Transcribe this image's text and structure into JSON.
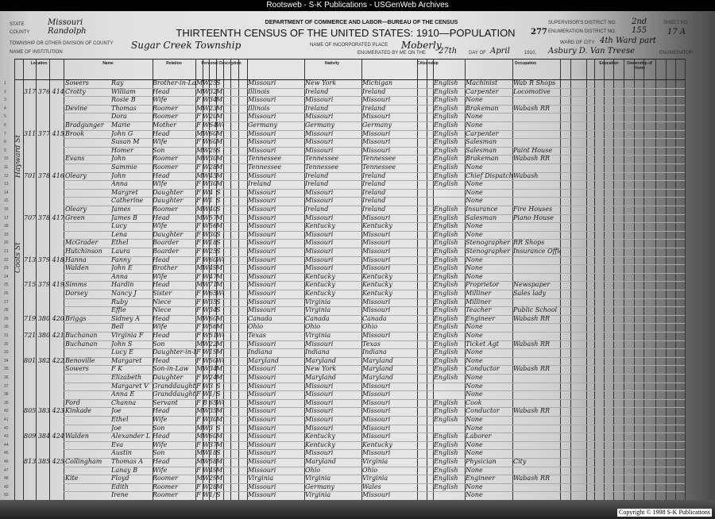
{
  "site_banner": "Rootsweb - S-K Publications - USGenWeb Archives",
  "copyright": "Copyright © 1998 S-K Publications",
  "header": {
    "department": "DEPARTMENT OF COMMERCE AND LABOR—BUREAU OF THE CENSUS",
    "title": "THIRTEENTH CENSUS OF THE UNITED STATES: 1910—POPULATION",
    "page_number": "277",
    "state_label": "State",
    "state": "Missouri",
    "county_label": "County",
    "county": "Randolph",
    "township_label": "Township or other division of county",
    "township": "Sugar Creek Township",
    "place_label": "Name of incorporated place",
    "place": "Moberly",
    "ward_label": "Ward of city",
    "ward": "4th Ward part",
    "supervisor_label": "Supervisor's District No.",
    "supervisor_district": "2nd",
    "enumeration_label": "Enumeration District No.",
    "enumeration_district": "155",
    "sheet_label": "Sheet No.",
    "sheet": "17 A",
    "institution_label": "Name of institution",
    "enumerated_label": "Enumerated by me on the",
    "day": "27th",
    "day_of_label": "day of",
    "month": "April",
    "year_label": "1910,",
    "enumerator": "Asbury D. Van Treese",
    "enumerator_label": "Enumerator"
  },
  "column_groups": [
    "Location",
    "Name",
    "Relation",
    "Personal Description",
    "Nativity",
    "Citizenship",
    "Occupation",
    "Education",
    "Ownership of Home"
  ],
  "streets": [
    "Hayward St",
    "Coots St"
  ],
  "row_fields": [
    "location",
    "surname",
    "given",
    "relation",
    "sex",
    "race",
    "age",
    "marital",
    "birthplace",
    "father_birthplace",
    "mother_birthplace",
    "language",
    "occupation",
    "industry"
  ],
  "rows": [
    [
      "",
      "Sowers",
      "Ray",
      "Brother-in-Law",
      "M",
      "W",
      "25",
      "S",
      "Missouri",
      "New York",
      "Michigan",
      "English",
      "Machinist",
      "Wab R Shops"
    ],
    [
      "317 376 414",
      "Crotty",
      "William",
      "Head",
      "M",
      "W",
      "32",
      "M1",
      "Illinois",
      "Ireland",
      "Ireland",
      "English",
      "Carpenter",
      "Locomotive"
    ],
    [
      "",
      "",
      "Rosie B",
      "Wife",
      "F",
      "W",
      "34",
      "M1",
      "Missouri",
      "Missouri",
      "Missouri",
      "English",
      "None",
      ""
    ],
    [
      "",
      "Devine",
      "Thomas",
      "Roomer",
      "M",
      "W",
      "23",
      "M1",
      "Illinois",
      "Ireland",
      "Ireland",
      "English",
      "Brakeman",
      "Wabash RR"
    ],
    [
      "",
      "",
      "Dora",
      "Roomer",
      "F",
      "W",
      "20",
      "M1",
      "Missouri",
      "Missouri",
      "Missouri",
      "English",
      "None",
      ""
    ],
    [
      "",
      "Bradgunger",
      "Marie",
      "Mother",
      "F",
      "W",
      "64",
      "Wd",
      "Germany",
      "Germany",
      "Germany",
      "English",
      "None",
      ""
    ],
    [
      "311 377 415",
      "Brook",
      "John G",
      "Head",
      "M",
      "W",
      "60",
      "M1",
      "Missouri",
      "Missouri",
      "Missouri",
      "English",
      "Carpenter",
      ""
    ],
    [
      "",
      "",
      "Susan M",
      "Wife",
      "F",
      "W",
      "60",
      "M1",
      "Missouri",
      "Missouri",
      "Missouri",
      "English",
      "Salesman",
      ""
    ],
    [
      "",
      "",
      "Homer",
      "Son",
      "M",
      "W",
      "29",
      "S",
      "Missouri",
      "Missouri",
      "Missouri",
      "English",
      "Salesman",
      "Paint House"
    ],
    [
      "",
      "Evans",
      "John",
      "Roomer",
      "M",
      "W",
      "30",
      "M1",
      "Tennessee",
      "Tennessee",
      "Tennessee",
      "English",
      "Brakeman",
      "Wabash RR"
    ],
    [
      "",
      "",
      "Sammie",
      "Roomer",
      "F",
      "W",
      "28",
      "M1",
      "Tennessee",
      "Tennessee",
      "Tennessee",
      "English",
      "None",
      ""
    ],
    [
      "701 378 416",
      "Oleary",
      "John",
      "Head",
      "M",
      "W",
      "45",
      "M1",
      "Missouri",
      "Ireland",
      "Ireland",
      "English",
      "Chief Dispatcher",
      "Wabash"
    ],
    [
      "",
      "",
      "Anna",
      "Wife",
      "F",
      "W",
      "30",
      "M1",
      "Ireland",
      "Ireland",
      "Ireland",
      "English",
      "None",
      ""
    ],
    [
      "",
      "",
      "Margret",
      "Daughter",
      "F",
      "W",
      "4",
      "S",
      "Missouri",
      "Missouri",
      "Ireland",
      "",
      "None",
      ""
    ],
    [
      "",
      "",
      "Catherine",
      "Daughter",
      "F",
      "W",
      "1",
      "S",
      "Missouri",
      "Missouri",
      "Ireland",
      "",
      "None",
      ""
    ],
    [
      "",
      "Oleary",
      "James",
      "Roomer",
      "M",
      "W",
      "40",
      "S",
      "Missouri",
      "Ireland",
      "Ireland",
      "English",
      "Insurance",
      "Fire Houses"
    ],
    [
      "707 378 417",
      "Green",
      "James B",
      "Head",
      "M",
      "W",
      "57",
      "M1",
      "Missouri",
      "Missouri",
      "Missouri",
      "English",
      "Salesman",
      "Piano House"
    ],
    [
      "",
      "",
      "Lucy",
      "Wife",
      "F",
      "W",
      "56",
      "M1",
      "Missouri",
      "Kentucky",
      "Kentucky",
      "English",
      "None",
      ""
    ],
    [
      "",
      "",
      "Lena",
      "Daughter",
      "F",
      "W",
      "30",
      "S",
      "Missouri",
      "Missouri",
      "Missouri",
      "English",
      "None",
      ""
    ],
    [
      "",
      "McGrader",
      "Ethel",
      "Boarder",
      "F",
      "W",
      "18",
      "S",
      "Missouri",
      "Missouri",
      "Missouri",
      "English",
      "Stenographer",
      "RR Shops"
    ],
    [
      "",
      "Hutchinson",
      "Laura",
      "Boarder",
      "F",
      "W",
      "25",
      "S",
      "Missouri",
      "Missouri",
      "Missouri",
      "English",
      "Stenographer",
      "Insurance Office"
    ],
    [
      "713 379 418",
      "Hanna",
      "Fanny",
      "Head",
      "F",
      "W",
      "60",
      "Wd",
      "Missouri",
      "Missouri",
      "Missouri",
      "English",
      "None",
      ""
    ],
    [
      "",
      "Walden",
      "John E",
      "Brother",
      "M",
      "W",
      "49",
      "M1",
      "Missouri",
      "Missouri",
      "Missouri",
      "English",
      "None",
      ""
    ],
    [
      "",
      "",
      "Anna",
      "Wife",
      "F",
      "W",
      "47",
      "M1",
      "Missouri",
      "Kentucky",
      "Kentucky",
      "English",
      "None",
      ""
    ],
    [
      "715 379 419",
      "Simms",
      "Hardin",
      "Head",
      "M",
      "W",
      "71",
      "M1",
      "Missouri",
      "Kentucky",
      "Kentucky",
      "English",
      "Proprietor",
      "Newspaper"
    ],
    [
      "",
      "Dorsey",
      "Nancy J",
      "Sister",
      "F",
      "W",
      "65",
      "Wd",
      "Missouri",
      "Kentucky",
      "Kentucky",
      "English",
      "Milliner",
      "Sales lady"
    ],
    [
      "",
      "",
      "Ruby",
      "Niece",
      "F",
      "W",
      "35",
      "S",
      "Missouri",
      "Virginia",
      "Missouri",
      "English",
      "Milliner",
      ""
    ],
    [
      "",
      "",
      "Effie",
      "Niece",
      "F",
      "W",
      "34",
      "S",
      "Missouri",
      "Virginia",
      "Missouri",
      "English",
      "Teacher",
      "Public School"
    ],
    [
      "719 380 420",
      "Briggs",
      "Sidney A",
      "Head",
      "M",
      "W",
      "60",
      "M1",
      "Canada",
      "Canada",
      "Canada",
      "English",
      "Engineer",
      "Wabash RR"
    ],
    [
      "",
      "",
      "Bell",
      "Wife",
      "F",
      "W",
      "56",
      "M1",
      "Ohio",
      "Ohio",
      "Ohio",
      "English",
      "None",
      ""
    ],
    [
      "721 380 421",
      "Buchanan",
      "Virginia F",
      "Head",
      "F",
      "W",
      "51",
      "Wd",
      "Texas",
      "Virginia",
      "Missouri",
      "English",
      "None",
      ""
    ],
    [
      "",
      "Buchanan",
      "John S",
      "Son",
      "M",
      "W",
      "22",
      "M1",
      "Missouri",
      "Missouri",
      "Texas",
      "English",
      "Ticket Agt",
      "Wabash RR"
    ],
    [
      "",
      "",
      "Lucy E",
      "Daughter-in-Law",
      "F",
      "W",
      "19",
      "M1",
      "Indiana",
      "Indiana",
      "Indiana",
      "English",
      "None",
      ""
    ],
    [
      "801 382 422",
      "Benoville",
      "Margaret",
      "Head",
      "F",
      "W",
      "50",
      "Wd",
      "Maryland",
      "Maryland",
      "Maryland",
      "English",
      "None",
      ""
    ],
    [
      "",
      "Sowers",
      "F K",
      "Son-in-Law",
      "M",
      "W",
      "34",
      "M1",
      "Missouri",
      "New York",
      "Maryland",
      "English",
      "Conductor",
      "Wabash RR"
    ],
    [
      "",
      "",
      "Elizabeth",
      "Daughter",
      "F",
      "W",
      "24",
      "M1",
      "Missouri",
      "Maryland",
      "Maryland",
      "English",
      "None",
      ""
    ],
    [
      "",
      "",
      "Margaret V",
      "Granddaughter",
      "F",
      "W",
      "3",
      "S",
      "Missouri",
      "Missouri",
      "Missouri",
      "",
      "None",
      ""
    ],
    [
      "",
      "",
      "Anna E",
      "Granddaughter",
      "F",
      "W",
      "1/12",
      "S",
      "Missouri",
      "Missouri",
      "Missouri",
      "",
      "None",
      ""
    ],
    [
      "",
      "Ford",
      "Channa",
      "Servant",
      "F",
      "B",
      "65",
      "Wd",
      "Missouri",
      "Missouri",
      "Missouri",
      "English",
      "Cook",
      ""
    ],
    [
      "805 383 423",
      "Kinkade",
      "Joe",
      "Head",
      "M",
      "W",
      "35",
      "M1",
      "Missouri",
      "Missouri",
      "Missouri",
      "English",
      "Conductor",
      "Wabash RR"
    ],
    [
      "",
      "",
      "Ethel",
      "Wife",
      "F",
      "W",
      "30",
      "M1",
      "Missouri",
      "Missouri",
      "Missouri",
      "English",
      "None",
      ""
    ],
    [
      "",
      "",
      "Joe",
      "Son",
      "M",
      "W",
      "3",
      "S",
      "Missouri",
      "Missouri",
      "Missouri",
      "",
      "None",
      ""
    ],
    [
      "809 384 424",
      "Walden",
      "Alexander L",
      "Head",
      "M",
      "W",
      "60",
      "M1",
      "Missouri",
      "Kentucky",
      "Missouri",
      "English",
      "Laborer",
      ""
    ],
    [
      "",
      "",
      "Eva",
      "Wife",
      "F",
      "W",
      "37",
      "M1",
      "Missouri",
      "Kentucky",
      "Kentucky",
      "English",
      "None",
      ""
    ],
    [
      "",
      "",
      "Austin",
      "Son",
      "M",
      "W",
      "18",
      "S",
      "Missouri",
      "Missouri",
      "Missouri",
      "English",
      "None",
      ""
    ],
    [
      "813 385 425",
      "Collingham",
      "Thomas A",
      "Head",
      "M",
      "W",
      "58",
      "M1",
      "Missouri",
      "Maryland",
      "Virginia",
      "English",
      "Physician",
      "City"
    ],
    [
      "",
      "",
      "Lanay B",
      "Wife",
      "F",
      "W",
      "49",
      "M1",
      "Missouri",
      "Ohio",
      "Ohio",
      "English",
      "None",
      ""
    ],
    [
      "",
      "Kite",
      "Floyd",
      "Roomer",
      "M",
      "W",
      "29",
      "M1",
      "Virginia",
      "Virginia",
      "Virginia",
      "English",
      "Engineer",
      "Wabash RR"
    ],
    [
      "",
      "",
      "Edith",
      "Roomer",
      "F",
      "W",
      "28",
      "M1",
      "Missouri",
      "Germany",
      "Wales",
      "English",
      "None",
      ""
    ],
    [
      "",
      "",
      "Irene",
      "Roomer",
      "F",
      "W",
      "1/12",
      "S",
      "Missouri",
      "Virginia",
      "Missouri",
      "",
      "None",
      ""
    ]
  ]
}
